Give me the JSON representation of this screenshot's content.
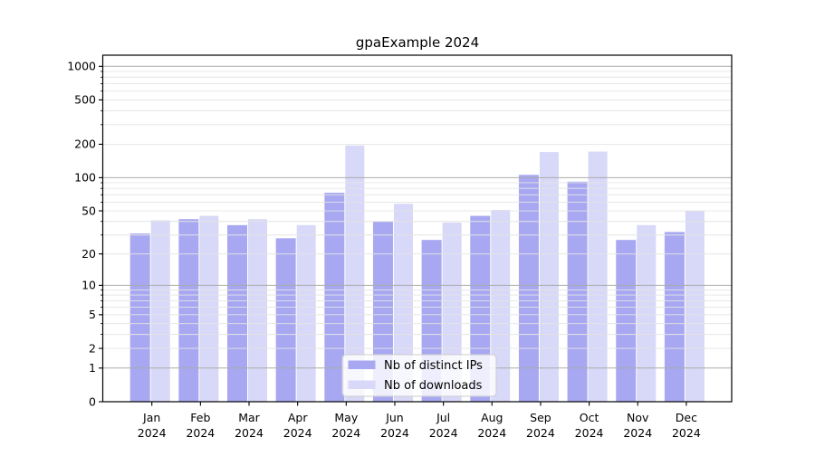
{
  "figure": {
    "background": "#ffffff"
  },
  "chart_data": {
    "type": "bar",
    "title": "gpaExample 2024",
    "categories": [
      "Jan 2024",
      "Feb 2024",
      "Mar 2024",
      "Apr 2024",
      "May 2024",
      "Jun 2024",
      "Jul 2024",
      "Aug 2024",
      "Sep 2024",
      "Oct 2024",
      "Nov 2024",
      "Dec 2024"
    ],
    "series": [
      {
        "name": "Nb of distinct IPs",
        "color": "#a8a8f2",
        "values": [
          31,
          42,
          37,
          28,
          73,
          40,
          27,
          45,
          106,
          92,
          27,
          32
        ]
      },
      {
        "name": "Nb of downloads",
        "color": "#d8d8f8",
        "values": [
          41,
          45,
          42,
          37,
          195,
          58,
          39,
          51,
          170,
          172,
          37,
          50
        ]
      }
    ],
    "xlabel": "",
    "ylabel": "",
    "y_scale": "log1p",
    "y_ticks": [
      0,
      1,
      2,
      5,
      10,
      20,
      50,
      100,
      200,
      500,
      1000
    ],
    "ylim": [
      0,
      1220
    ],
    "grid": "major and minor horizontal gridlines, drawn over bars",
    "legend_position": "inside lower center",
    "colors": {
      "major_grid": "#ababab",
      "minor_grid": "#e4e4e4",
      "spine": "#000000",
      "legend_border": "#cccccc"
    }
  }
}
